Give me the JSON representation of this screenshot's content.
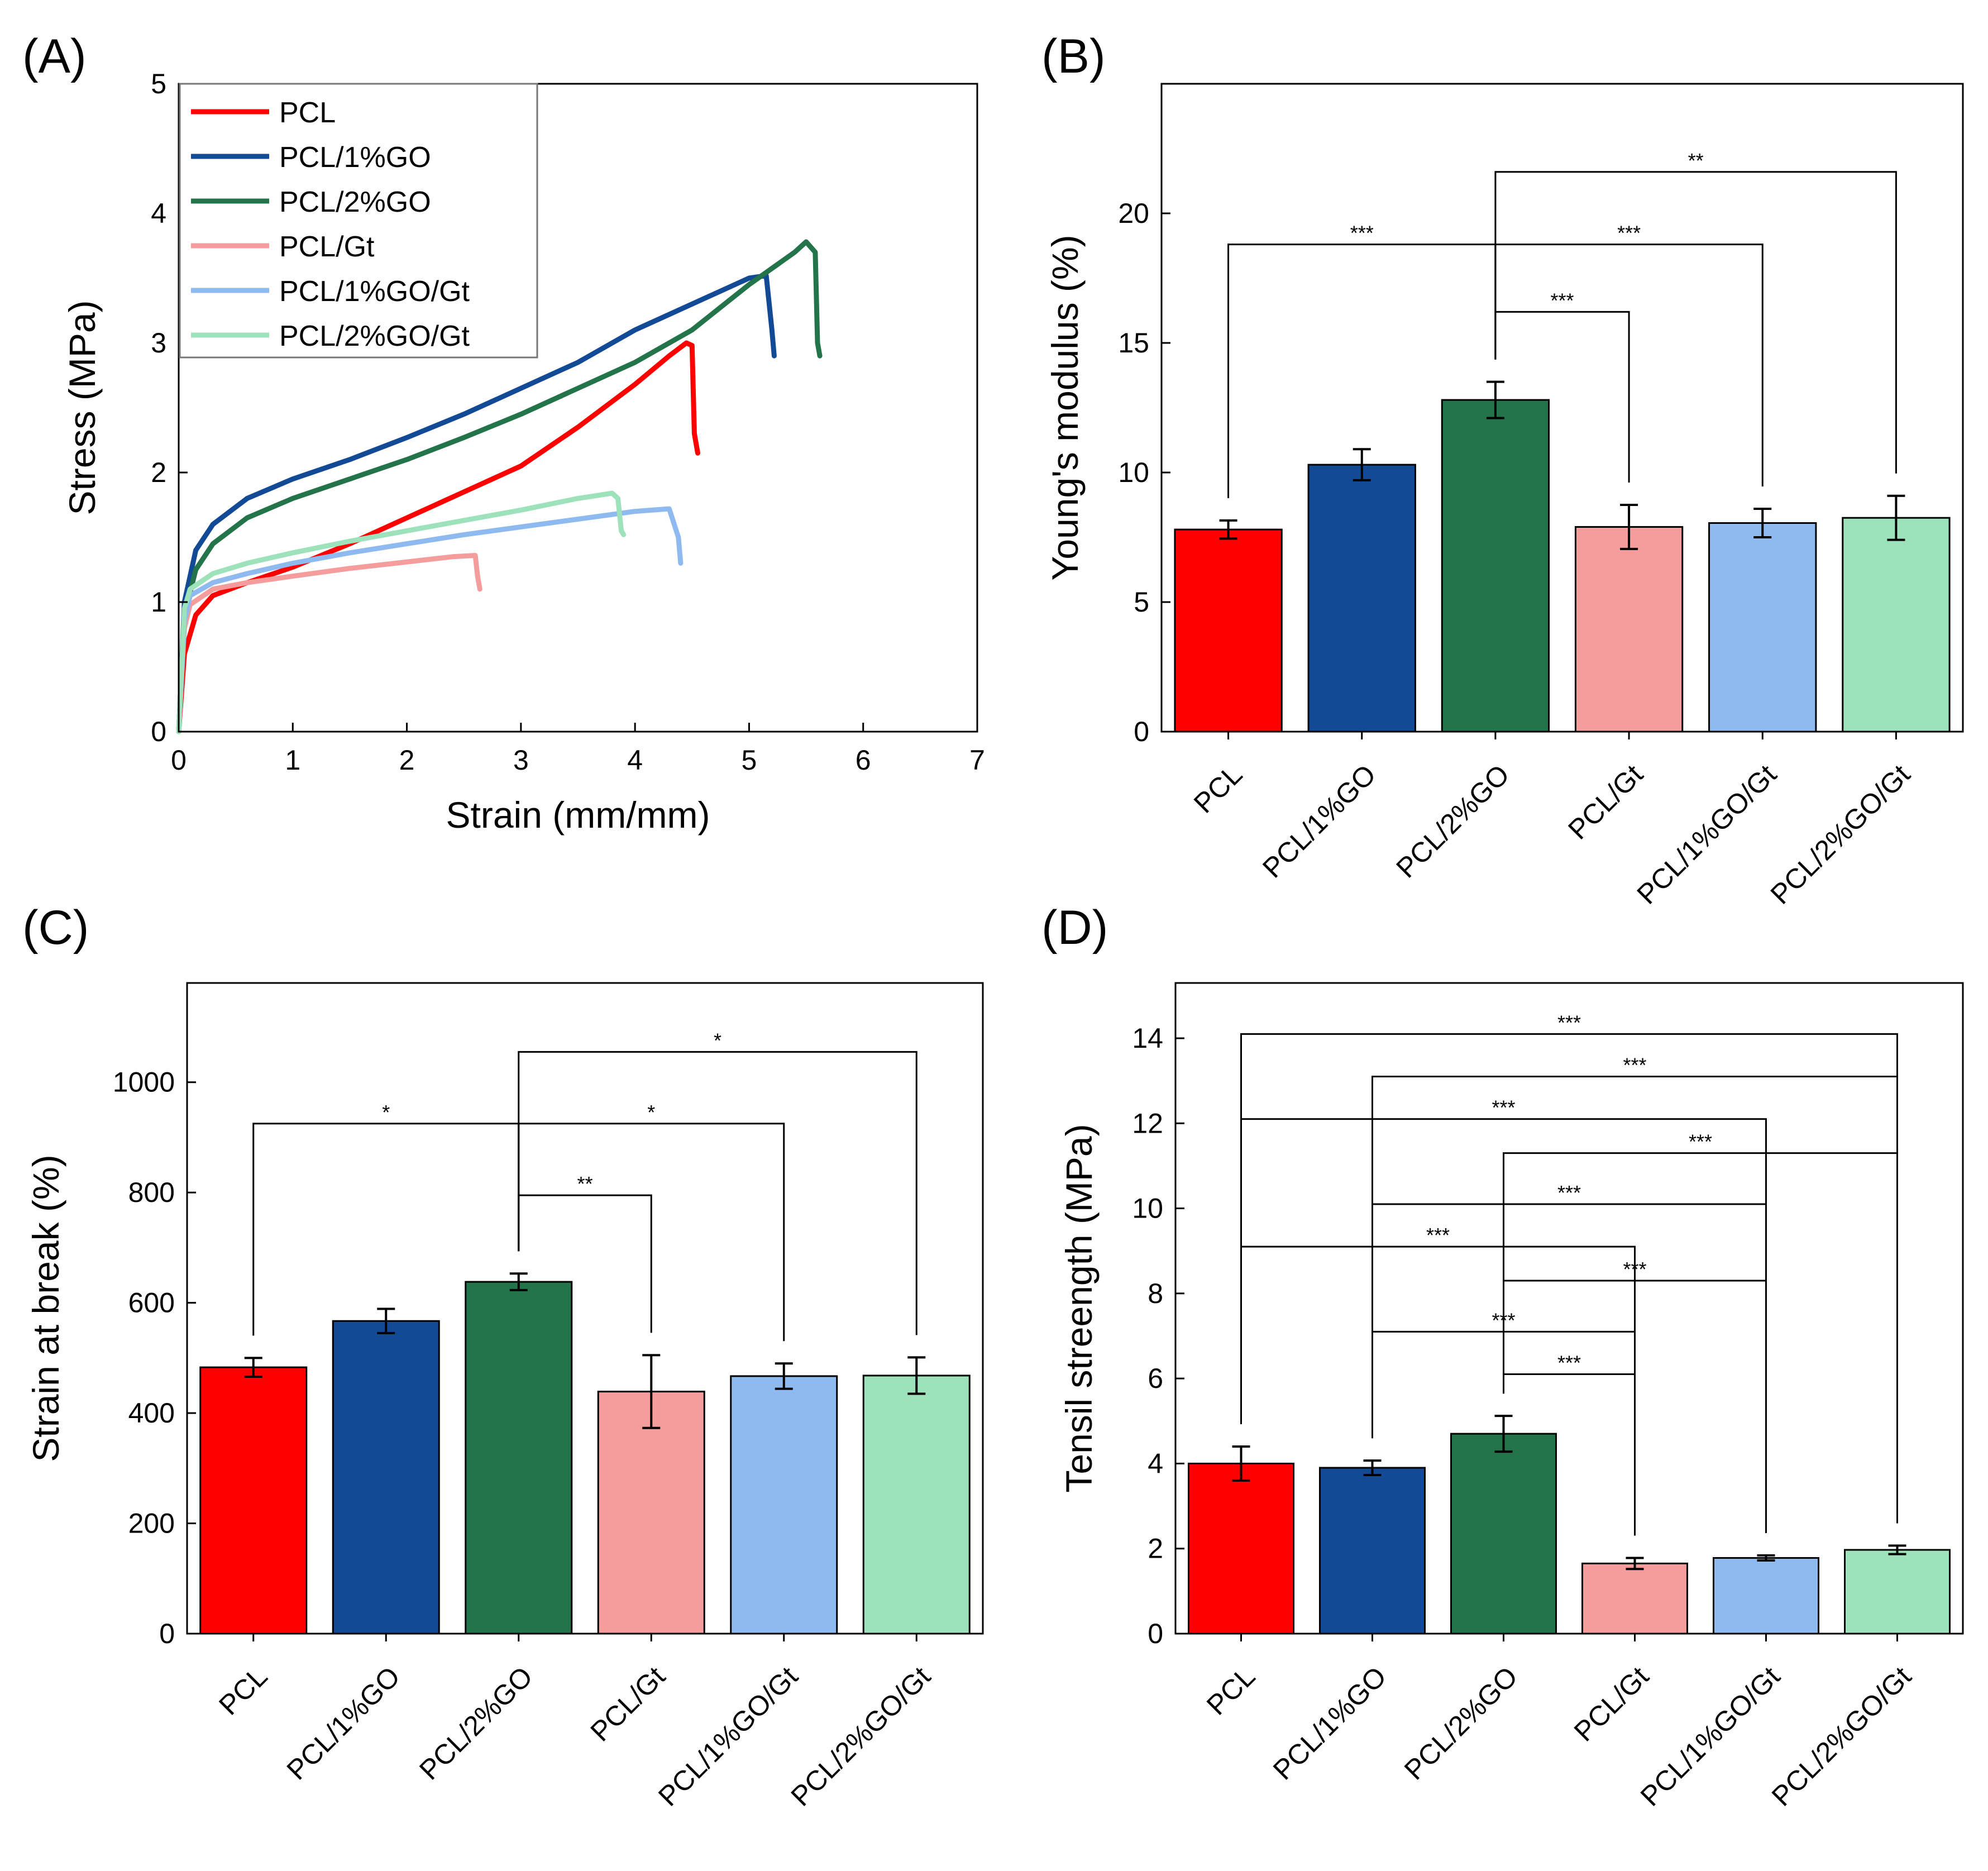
{
  "colors": {
    "PCL": "#ff0000",
    "PCL/1%GO": "#124a96",
    "PCL/2%GO": "#23744a",
    "PCL/Gt": "#f59c9c",
    "PCL/1%GO/Gt": "#8fbaf0",
    "PCL/2%GO/Gt": "#9de2bb"
  },
  "chart_data": [
    {
      "panel": "(A)",
      "type": "line",
      "xlabel": "Strain (mm/mm)",
      "ylabel": "Stress (MPa)",
      "xlim": [
        0,
        7
      ],
      "ylim": [
        0,
        5
      ],
      "xticks": [
        0,
        1,
        2,
        3,
        4,
        5,
        6,
        7
      ],
      "yticks": [
        0,
        1,
        2,
        3,
        4,
        5
      ],
      "legend_position": "top-left",
      "series": [
        {
          "name": "PCL",
          "x": [
            0,
            0.05,
            0.15,
            0.3,
            0.6,
            1.0,
            1.5,
            2.0,
            2.5,
            3.0,
            3.5,
            4.0,
            4.3,
            4.45,
            4.5,
            4.52,
            4.55
          ],
          "y": [
            0,
            0.6,
            0.9,
            1.05,
            1.15,
            1.27,
            1.45,
            1.65,
            1.85,
            2.05,
            2.35,
            2.68,
            2.9,
            3.0,
            2.98,
            2.3,
            2.15
          ]
        },
        {
          "name": "PCL/1%GO",
          "x": [
            0,
            0.05,
            0.15,
            0.3,
            0.6,
            1.0,
            1.5,
            2.0,
            2.5,
            3.0,
            3.5,
            4.0,
            4.5,
            5.0,
            5.15,
            5.2,
            5.22
          ],
          "y": [
            0,
            1.0,
            1.4,
            1.6,
            1.8,
            1.95,
            2.1,
            2.27,
            2.45,
            2.65,
            2.85,
            3.1,
            3.3,
            3.5,
            3.52,
            3.1,
            2.9
          ]
        },
        {
          "name": "PCL/2%GO",
          "x": [
            0,
            0.05,
            0.15,
            0.3,
            0.6,
            1.0,
            1.5,
            2.0,
            2.5,
            3.0,
            3.5,
            4.0,
            4.5,
            5.0,
            5.4,
            5.5,
            5.58,
            5.6,
            5.62
          ],
          "y": [
            0,
            0.9,
            1.25,
            1.45,
            1.65,
            1.8,
            1.95,
            2.1,
            2.27,
            2.45,
            2.65,
            2.85,
            3.1,
            3.45,
            3.7,
            3.78,
            3.7,
            3.0,
            2.9
          ]
        },
        {
          "name": "PCL/Gt",
          "x": [
            0,
            0.05,
            0.1,
            0.3,
            0.6,
            1.0,
            1.5,
            2.0,
            2.4,
            2.6,
            2.62,
            2.64
          ],
          "y": [
            0,
            0.8,
            0.98,
            1.1,
            1.15,
            1.2,
            1.26,
            1.31,
            1.35,
            1.36,
            1.2,
            1.1
          ]
        },
        {
          "name": "PCL/1%GO/Gt",
          "x": [
            0,
            0.05,
            0.1,
            0.3,
            0.6,
            1.0,
            1.5,
            2.0,
            2.5,
            3.0,
            3.5,
            4.0,
            4.3,
            4.38,
            4.4
          ],
          "y": [
            0,
            0.85,
            1.05,
            1.15,
            1.22,
            1.3,
            1.38,
            1.45,
            1.52,
            1.58,
            1.64,
            1.7,
            1.72,
            1.5,
            1.3
          ]
        },
        {
          "name": "PCL/2%GO/Gt",
          "x": [
            0,
            0.05,
            0.1,
            0.3,
            0.6,
            1.0,
            1.5,
            2.0,
            2.5,
            3.0,
            3.5,
            3.8,
            3.85,
            3.88,
            3.9
          ],
          "y": [
            0,
            0.95,
            1.1,
            1.22,
            1.3,
            1.38,
            1.47,
            1.55,
            1.63,
            1.71,
            1.8,
            1.84,
            1.8,
            1.55,
            1.52
          ]
        }
      ]
    },
    {
      "panel": "(B)",
      "type": "bar",
      "ylabel": "Young's modulus (%)",
      "ylim": [
        0,
        25
      ],
      "yticks": [
        0,
        5,
        10,
        15,
        20
      ],
      "categories": [
        "PCL",
        "PCL/1%GO",
        "PCL/2%GO",
        "PCL/Gt",
        "PCL/1%GO/Gt",
        "PCL/2%GO/Gt"
      ],
      "values": [
        7.8,
        10.3,
        12.8,
        7.9,
        8.05,
        8.25
      ],
      "errors": [
        0.35,
        0.6,
        0.7,
        0.85,
        0.55,
        0.85
      ],
      "significance": [
        {
          "from": 0,
          "to": 2,
          "label": "***",
          "level": 18.8
        },
        {
          "from": 2,
          "to": 4,
          "label": "***",
          "level": 18.8
        },
        {
          "from": 2,
          "to": 3,
          "label": "***",
          "level": 16.2
        },
        {
          "from": 2,
          "to": 5,
          "label": "**",
          "level": 21.6
        }
      ]
    },
    {
      "panel": "(C)",
      "type": "bar",
      "ylabel": "Strain at break (%)",
      "ylim": [
        0,
        1180
      ],
      "yticks": [
        0,
        200,
        400,
        600,
        800,
        1000
      ],
      "categories": [
        "PCL",
        "PCL/1%GO",
        "PCL/2%GO",
        "PCL/Gt",
        "PCL/1%GO/Gt",
        "PCL/2%GO/Gt"
      ],
      "values": [
        483,
        567,
        638,
        439,
        467,
        468
      ],
      "errors": [
        17,
        22,
        15,
        66,
        23,
        33
      ],
      "significance": [
        {
          "from": 0,
          "to": 2,
          "label": "*",
          "level": 925
        },
        {
          "from": 2,
          "to": 4,
          "label": "*",
          "level": 925
        },
        {
          "from": 2,
          "to": 3,
          "label": "**",
          "level": 795
        },
        {
          "from": 2,
          "to": 5,
          "label": "*",
          "level": 1055
        }
      ]
    },
    {
      "panel": "(D)",
      "type": "bar",
      "ylabel": "Tensil streength (MPa)",
      "ylim": [
        0,
        15.3
      ],
      "yticks": [
        0,
        2,
        4,
        6,
        8,
        10,
        12,
        14
      ],
      "categories": [
        "PCL",
        "PCL/1%GO",
        "PCL/2%GO",
        "PCL/Gt",
        "PCL/1%GO/Gt",
        "PCL/2%GO/Gt"
      ],
      "values": [
        4.0,
        3.9,
        4.7,
        1.65,
        1.78,
        1.97
      ],
      "errors": [
        0.4,
        0.17,
        0.42,
        0.13,
        0.06,
        0.1
      ],
      "significance": [
        {
          "from": 0,
          "to": 5,
          "label": "***",
          "level": 14.1
        },
        {
          "from": 1,
          "to": 5,
          "label": "***",
          "level": 13.1
        },
        {
          "from": 0,
          "to": 4,
          "label": "***",
          "level": 12.1
        },
        {
          "from": 2,
          "to": 5,
          "label": "***",
          "level": 11.3
        },
        {
          "from": 1,
          "to": 4,
          "label": "***",
          "level": 10.1
        },
        {
          "from": 0,
          "to": 3,
          "label": "***",
          "level": 9.1
        },
        {
          "from": 2,
          "to": 4,
          "label": "***",
          "level": 8.3
        },
        {
          "from": 1,
          "to": 3,
          "label": "***",
          "level": 7.1
        },
        {
          "from": 2,
          "to": 3,
          "label": "***",
          "level": 6.1
        }
      ]
    }
  ]
}
